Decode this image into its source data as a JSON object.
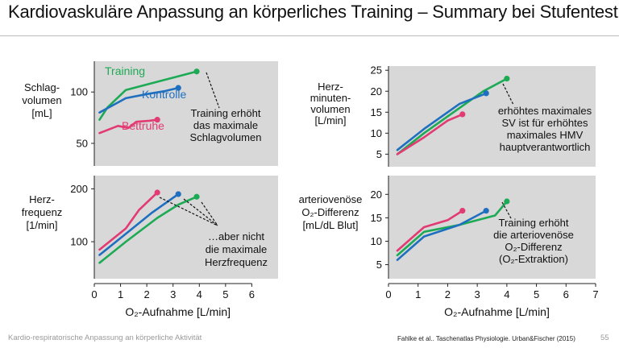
{
  "slide": {
    "title": "Kardiovaskuläre Anpassung an körperliches Training – Summary bei Stufentest",
    "footer_left": "Kardio-respiratorische Anpassung an körperliche Aktivität",
    "citation": "Fahlke et al.. Taschenatlas Physiologie. Urban&Fischer (2015)",
    "page_number": "55"
  },
  "colors": {
    "training": "#1daa55",
    "kontrolle": "#1f6fc0",
    "bettruhe": "#e23a72"
  },
  "chart_data": [
    {
      "type": "line",
      "panel": "top-left",
      "ylabel_lines": [
        "Schlag-",
        "volumen",
        "[mL]"
      ],
      "yticks": [
        50,
        100
      ],
      "ylim": [
        28,
        130
      ],
      "xlim": [
        0,
        7
      ],
      "series": [
        {
          "name": "Training",
          "key": "training",
          "x": [
            0.2,
            0.5,
            1.2,
            2.4,
            3.9
          ],
          "y": [
            73,
            85,
            102,
            110,
            120
          ]
        },
        {
          "name": "Kontrolle",
          "key": "kontrolle",
          "x": [
            0.2,
            1.2,
            2.0,
            2.7,
            3.2
          ],
          "y": [
            80,
            94,
            98,
            101,
            104
          ]
        },
        {
          "name": "Bettruhe",
          "key": "bettruhe",
          "x": [
            0.2,
            0.9,
            1.3,
            1.6,
            2.1,
            2.4
          ],
          "y": [
            60,
            67,
            65,
            71,
            72,
            73
          ]
        }
      ],
      "annotation_lines": [
        "Training erhöht",
        "das maximale",
        "Schlagvolumen"
      ]
    },
    {
      "type": "line",
      "panel": "top-right",
      "ylabel_lines": [
        "Herz-",
        "minuten-",
        "volumen",
        "[L/min]"
      ],
      "yticks": [
        5,
        10,
        15,
        20,
        25
      ],
      "ylim": [
        2,
        26
      ],
      "xlim": [
        0,
        7
      ],
      "series": [
        {
          "name": "Training",
          "key": "training",
          "x": [
            0.3,
            1.2,
            2.4,
            3.2,
            4.0
          ],
          "y": [
            5,
            10,
            16,
            20,
            23
          ]
        },
        {
          "name": "Kontrolle",
          "key": "kontrolle",
          "x": [
            0.3,
            1.2,
            2.4,
            3.3
          ],
          "y": [
            6,
            11,
            17,
            19.5
          ]
        },
        {
          "name": "Bettruhe",
          "key": "bettruhe",
          "x": [
            0.3,
            1.2,
            2.0,
            2.5
          ],
          "y": [
            5,
            9,
            13,
            14.5
          ]
        }
      ],
      "annotation_lines": [
        "erhöhtes maximales",
        "SV ist für erhöhtes",
        "maximales HMV",
        "hauptverantwortlich"
      ]
    },
    {
      "type": "line",
      "panel": "bottom-left",
      "ylabel_lines": [
        "Herz-",
        "frequenz",
        "[1/min]"
      ],
      "yticks": [
        100,
        200
      ],
      "ylim": [
        30,
        225
      ],
      "xlim": [
        0,
        7
      ],
      "xticks": [
        0,
        1,
        2,
        3,
        4,
        5,
        6
      ],
      "xlabel": "O₂-Aufnahme [L/min]",
      "series": [
        {
          "name": "Training",
          "key": "training",
          "x": [
            0.2,
            1.2,
            2.4,
            3.2,
            3.9
          ],
          "y": [
            60,
            100,
            145,
            170,
            185
          ]
        },
        {
          "name": "Kontrolle",
          "key": "kontrolle",
          "x": [
            0.2,
            1.2,
            2.2,
            3.2
          ],
          "y": [
            75,
            115,
            155,
            190
          ]
        },
        {
          "name": "Bettruhe",
          "key": "bettruhe",
          "x": [
            0.2,
            1.2,
            1.7,
            2.4
          ],
          "y": [
            85,
            125,
            160,
            193
          ]
        }
      ],
      "annotation_lines": [
        "…aber nicht",
        "die maximale",
        "Herzfrequenz"
      ]
    },
    {
      "type": "line",
      "panel": "bottom-right",
      "ylabel_lines": [
        "arteriovenöse",
        "O₂-Differenz",
        "[mL/dL Blut]"
      ],
      "yticks": [
        5,
        10,
        15,
        20
      ],
      "ylim": [
        2,
        24
      ],
      "xlim": [
        0,
        7
      ],
      "xticks": [
        0,
        1,
        2,
        3,
        4,
        5,
        6,
        7
      ],
      "xlabel": "O₂-Aufnahme [L/min]",
      "series": [
        {
          "name": "Training",
          "key": "training",
          "x": [
            0.3,
            1.2,
            2.4,
            3.6,
            4.0
          ],
          "y": [
            7,
            12,
            13.5,
            15.5,
            18.5
          ]
        },
        {
          "name": "Kontrolle",
          "key": "kontrolle",
          "x": [
            0.3,
            1.2,
            2.4,
            3.3
          ],
          "y": [
            6,
            11,
            13.5,
            16.5
          ]
        },
        {
          "name": "Bettruhe",
          "key": "bettruhe",
          "x": [
            0.3,
            1.2,
            2.0,
            2.5
          ],
          "y": [
            8,
            13,
            14.5,
            16.5
          ]
        }
      ],
      "annotation_lines": [
        "Training erhöht",
        "die arteriovenöse",
        "O₂-Differenz",
        "(O₂-Extraktion)"
      ]
    }
  ]
}
